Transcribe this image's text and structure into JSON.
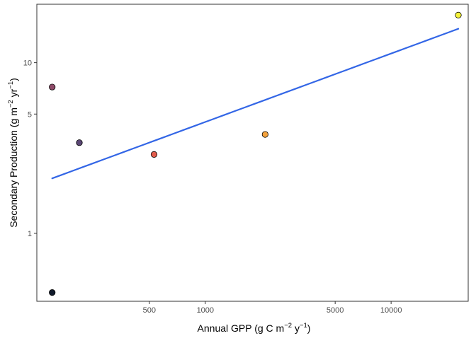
{
  "chart_data": {
    "type": "scatter",
    "title": "",
    "xlabel": {
      "base": "Annual GPP (g C m",
      "exp1": "−2",
      "mid": " y",
      "exp2": "−1",
      "end": ")"
    },
    "ylabel": {
      "base": "Secondary Production (g  m",
      "exp1": "−2",
      "mid": " yr",
      "exp2": "−1",
      "end": ")"
    },
    "x_scale": "log10",
    "y_scale": "log10",
    "xlim": [
      124,
      26000
    ],
    "ylim": [
      0.4,
      22
    ],
    "x_ticks": [
      {
        "value": 500,
        "label": "500"
      },
      {
        "value": 1000,
        "label": "1000"
      },
      {
        "value": 5000,
        "label": "5000"
      },
      {
        "value": 10000,
        "label": "10000"
      }
    ],
    "y_ticks": [
      {
        "value": 1,
        "label": "1"
      },
      {
        "value": 5,
        "label": "5"
      },
      {
        "value": 10,
        "label": "10"
      }
    ],
    "grid": false,
    "legend": "none",
    "points": [
      {
        "x": 150,
        "y": 7.2,
        "color": "#8e4a68"
      },
      {
        "x": 150,
        "y": 0.45,
        "color": "#111a2c"
      },
      {
        "x": 210,
        "y": 3.4,
        "color": "#5b4775"
      },
      {
        "x": 530,
        "y": 2.9,
        "color": "#e25c4c"
      },
      {
        "x": 2100,
        "y": 3.8,
        "color": "#f3a23d"
      },
      {
        "x": 23000,
        "y": 19,
        "color": "#f5f33a"
      }
    ],
    "fit_line": {
      "color": "#3366e6",
      "x": [
        150,
        23000
      ],
      "y": [
        2.1,
        15.8
      ]
    }
  }
}
